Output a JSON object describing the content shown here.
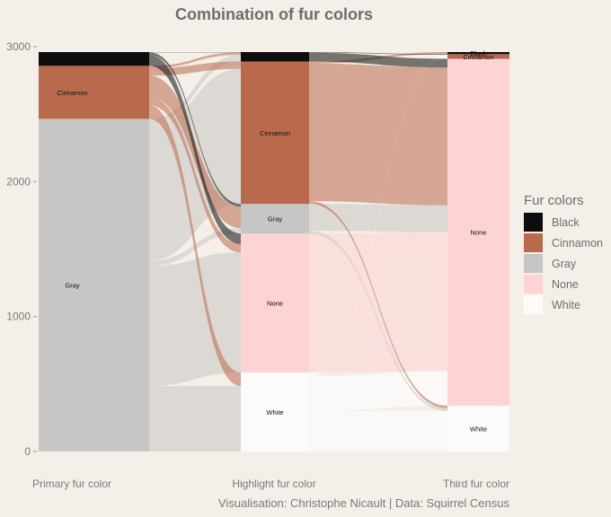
{
  "chart_data": {
    "type": "alluvial",
    "title": "Combination of fur colors",
    "caption": "Visualisation: Christophe Nicault | Data: Squirrel Census",
    "axes": [
      "Primary fur color",
      "Highlight fur color",
      "Third fur color"
    ],
    "y_ticks": [
      0,
      1000,
      2000,
      3000
    ],
    "ylim": [
      0,
      3000
    ],
    "legend_title": "Fur colors",
    "legend_position": "right",
    "colors": {
      "Black": "#0d0d0d",
      "Cinnamon": "#b96a4d",
      "Gray": "#c8c6c4",
      "None": "#fdd3d3",
      "White": "#fcfbfa"
    },
    "legend": [
      "Black",
      "Cinnamon",
      "Gray",
      "None",
      "White"
    ],
    "stacks": [
      [
        {
          "name": "Gray",
          "value": 2465
        },
        {
          "name": "Cinnamon",
          "value": 393
        },
        {
          "name": "Black",
          "value": 102
        }
      ],
      [
        {
          "name": "White",
          "value": 585
        },
        {
          "name": "None",
          "value": 1030
        },
        {
          "name": "Gray",
          "value": 220
        },
        {
          "name": "Cinnamon",
          "value": 1055
        },
        {
          "name": "Black",
          "value": 70
        }
      ],
      [
        {
          "name": "White",
          "value": 340
        },
        {
          "name": "None",
          "value": 2570
        },
        {
          "name": "Cinnamon",
          "value": 35
        },
        {
          "name": "Black",
          "value": 15
        }
      ]
    ],
    "flows_1_2": [
      {
        "from": "Gray",
        "to": "White",
        "value": 485
      },
      {
        "from": "Gray",
        "to": "None",
        "value": 890
      },
      {
        "from": "Gray",
        "to": "Gray",
        "value": 40
      },
      {
        "from": "Gray",
        "to": "Cinnamon",
        "value": 1000
      },
      {
        "from": "Gray",
        "to": "Black",
        "value": 50
      },
      {
        "from": "Cinnamon",
        "to": "White",
        "value": 100
      },
      {
        "from": "Cinnamon",
        "to": "None",
        "value": 60
      },
      {
        "from": "Cinnamon",
        "to": "Gray",
        "value": 160
      },
      {
        "from": "Cinnamon",
        "to": "Cinnamon",
        "value": 55
      },
      {
        "from": "Cinnamon",
        "to": "Black",
        "value": 18
      },
      {
        "from": "Black",
        "to": "None",
        "value": 80
      },
      {
        "from": "Black",
        "to": "Gray",
        "value": 20
      },
      {
        "from": "Black",
        "to": "Black",
        "value": 2
      }
    ],
    "flows_2_3": [
      {
        "from": "White",
        "to": "White",
        "value": 300
      },
      {
        "from": "White",
        "to": "None",
        "value": 255
      },
      {
        "from": "White",
        "to": "Cinnamon",
        "value": 30
      },
      {
        "from": "None",
        "to": "None",
        "value": 1030
      },
      {
        "from": "Gray",
        "to": "White",
        "value": 20
      },
      {
        "from": "Gray",
        "to": "None",
        "value": 200
      },
      {
        "from": "Cinnamon",
        "to": "White",
        "value": 20
      },
      {
        "from": "Cinnamon",
        "to": "None",
        "value": 1020
      },
      {
        "from": "Cinnamon",
        "to": "Black",
        "value": 15
      },
      {
        "from": "Black",
        "to": "None",
        "value": 65
      },
      {
        "from": "Black",
        "to": "Cinnamon",
        "value": 5
      }
    ]
  }
}
